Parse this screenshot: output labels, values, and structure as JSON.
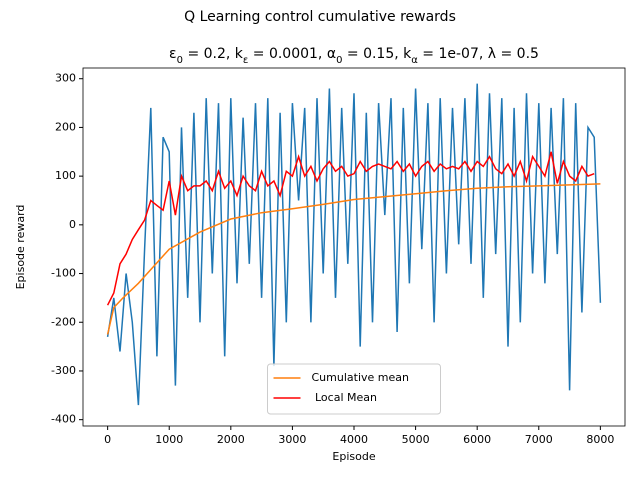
{
  "chart_data": {
    "type": "line",
    "title": "Q Learning control cumulative rewards",
    "subtitle": [
      {
        "text": "ε"
      },
      {
        "text": "0",
        "sub": true
      },
      {
        "text": " = 0.2, k"
      },
      {
        "text": "ε",
        "sub": true
      },
      {
        "text": " = 0.0001, α"
      },
      {
        "text": "0",
        "sub": true
      },
      {
        "text": " = 0.15, k"
      },
      {
        "text": "α",
        "sub": true
      },
      {
        "text": " = 1e-07, λ = 0.5"
      }
    ],
    "x_label": "Episode",
    "y_label": "Episode reward",
    "xlim": [
      -400,
      8400
    ],
    "ylim": [
      -413,
      322
    ],
    "xticks": [
      0,
      1000,
      2000,
      3000,
      4000,
      5000,
      6000,
      7000,
      8000
    ],
    "yticks": [
      -400,
      -300,
      -200,
      -100,
      0,
      100,
      200,
      300
    ],
    "legend": "lower center",
    "series": [
      {
        "color": "#1f77b4",
        "x": [
          0,
          100,
          200,
          300,
          400,
          500,
          600,
          700,
          800,
          900,
          1000,
          1100,
          1200,
          1300,
          1400,
          1500,
          1600,
          1700,
          1800,
          1900,
          2000,
          2100,
          2200,
          2300,
          2400,
          2500,
          2600,
          2700,
          2800,
          2900,
          3000,
          3100,
          3200,
          3300,
          3400,
          3500,
          3600,
          3700,
          3800,
          3900,
          4000,
          4100,
          4200,
          4300,
          4400,
          4500,
          4600,
          4700,
          4800,
          4900,
          5000,
          5100,
          5200,
          5300,
          5400,
          5500,
          5600,
          5700,
          5800,
          5900,
          6000,
          6100,
          6200,
          6300,
          6400,
          6500,
          6600,
          6700,
          6800,
          6900,
          7000,
          7100,
          7200,
          7300,
          7400,
          7500,
          7600,
          7700,
          7800,
          7900,
          8000
        ],
        "values": [
          -230,
          -150,
          -260,
          -100,
          -200,
          -370,
          -50,
          240,
          -270,
          180,
          150,
          -330,
          200,
          -150,
          230,
          -200,
          260,
          -100,
          250,
          -270,
          260,
          -120,
          220,
          -80,
          250,
          -150,
          260,
          -290,
          230,
          -200,
          250,
          50,
          240,
          -200,
          260,
          -100,
          280,
          -150,
          240,
          -80,
          270,
          -250,
          230,
          -200,
          250,
          20,
          260,
          -220,
          240,
          -120,
          280,
          -50,
          250,
          -200,
          260,
          -100,
          240,
          -40,
          260,
          -80,
          290,
          -150,
          270,
          -60,
          260,
          -250,
          240,
          -200,
          270,
          -100,
          250,
          -120,
          240,
          -60,
          260,
          -340,
          250,
          -180,
          200,
          180,
          -160
        ]
      },
      {
        "name": "Cumulative mean",
        "color": "#ff7f0e",
        "x": [
          0,
          100,
          250,
          500,
          750,
          1000,
          1500,
          2000,
          2500,
          3000,
          3500,
          4000,
          4500,
          5000,
          5500,
          6000,
          6500,
          7000,
          7500,
          8000
        ],
        "values": [
          -225,
          -170,
          -150,
          -120,
          -85,
          -50,
          -15,
          12,
          25,
          33,
          42,
          52,
          58,
          64,
          70,
          75,
          78,
          80,
          82,
          84
        ]
      },
      {
        "name": " Local Mean",
        "color": "red",
        "x": [
          0,
          100,
          200,
          300,
          400,
          500,
          600,
          700,
          800,
          900,
          1000,
          1100,
          1200,
          1300,
          1400,
          1500,
          1600,
          1700,
          1800,
          1900,
          2000,
          2100,
          2200,
          2300,
          2400,
          2500,
          2600,
          2700,
          2800,
          2900,
          3000,
          3100,
          3200,
          3300,
          3400,
          3500,
          3600,
          3700,
          3800,
          3900,
          4000,
          4100,
          4200,
          4300,
          4400,
          4500,
          4600,
          4700,
          4800,
          4900,
          5000,
          5100,
          5200,
          5300,
          5400,
          5500,
          5600,
          5700,
          5800,
          5900,
          6000,
          6100,
          6200,
          6300,
          6400,
          6500,
          6600,
          6700,
          6800,
          6900,
          7000,
          7100,
          7200,
          7300,
          7400,
          7500,
          7600,
          7700,
          7800,
          7900
        ],
        "values": [
          -165,
          -140,
          -80,
          -60,
          -30,
          -10,
          10,
          50,
          40,
          30,
          90,
          20,
          100,
          70,
          80,
          80,
          90,
          70,
          110,
          75,
          90,
          60,
          100,
          80,
          70,
          110,
          80,
          90,
          60,
          110,
          100,
          140,
          100,
          120,
          90,
          115,
          130,
          110,
          120,
          100,
          105,
          130,
          110,
          120,
          125,
          120,
          115,
          130,
          110,
          125,
          100,
          120,
          130,
          110,
          125,
          115,
          120,
          115,
          130,
          110,
          130,
          120,
          140,
          115,
          105,
          125,
          100,
          130,
          90,
          140,
          120,
          100,
          150,
          85,
          130,
          100,
          90,
          120,
          100,
          105
        ]
      }
    ]
  }
}
